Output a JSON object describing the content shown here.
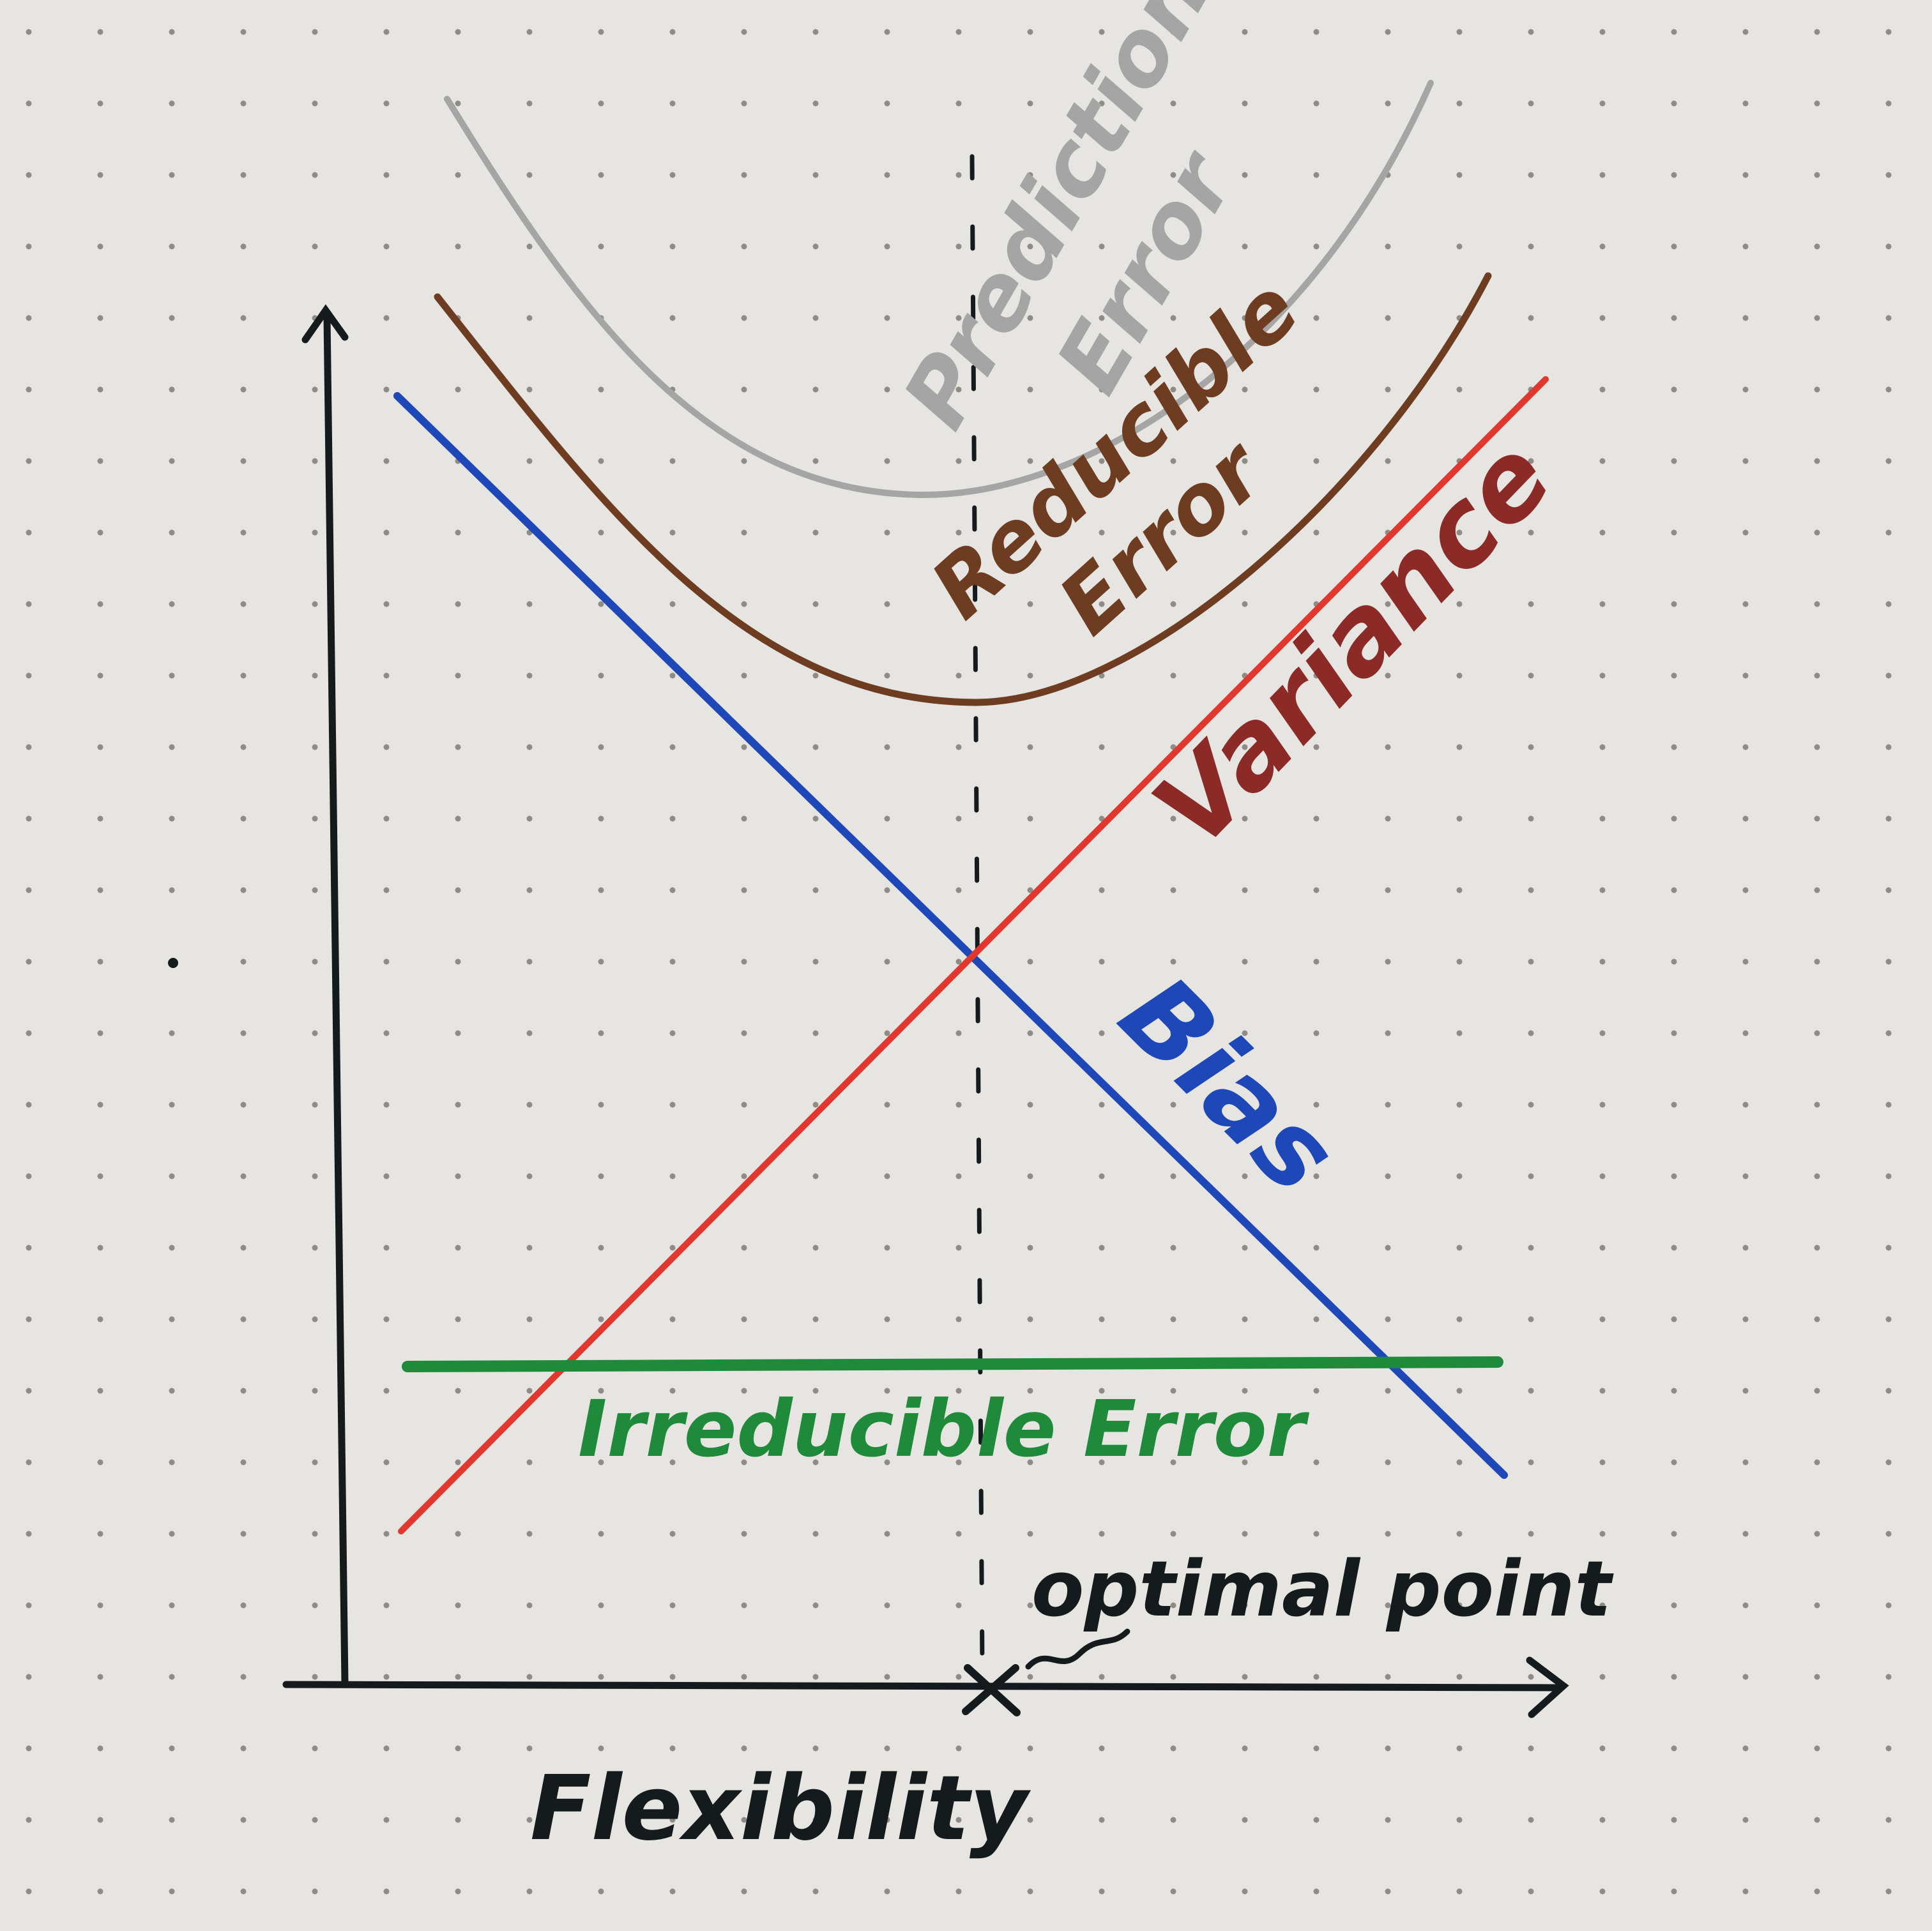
{
  "labels": {
    "prediction_error": [
      "Prediction",
      "Error"
    ],
    "reducible_error": [
      "Reducible",
      "Error"
    ],
    "variance": "Variance",
    "bias": "Bias",
    "irreducible_error": "Irreducible Error",
    "optimal_point": "optimal point",
    "x_axis": "Flexibility"
  },
  "colors": {
    "paper": "#e6e5e1",
    "dot": "#8f8c85",
    "ink": "#151a1c",
    "prediction_error": "#a5a5a5",
    "reducible_error": "#6e3d21",
    "variance": "#e0372e",
    "variance_label": "#8c2a27",
    "bias": "#1e47b8",
    "irreducible_error": "#1f8a3a"
  }
}
